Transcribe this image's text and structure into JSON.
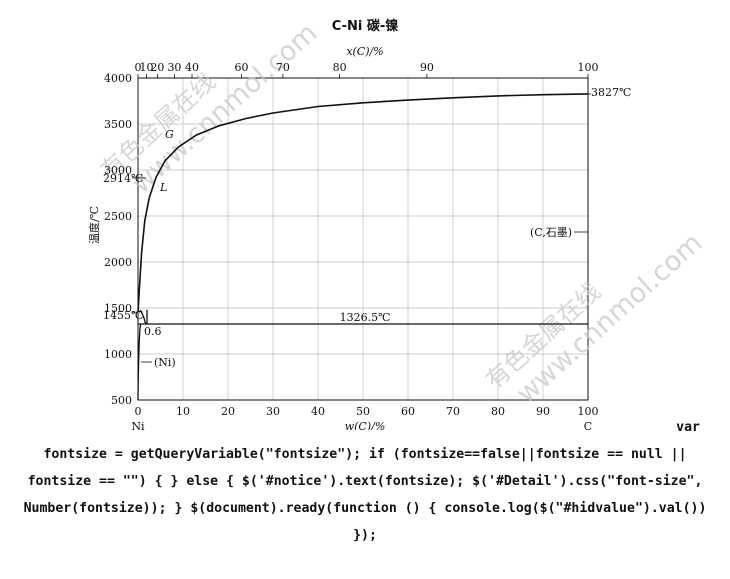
{
  "figure": {
    "title": "C-Ni 碳-镍",
    "top_axis_label": "x(C)/%",
    "bottom_axis_label": "w(C)/%",
    "y_axis_label": "温度/℃",
    "element_left": "Ni",
    "element_right": "C",
    "phase_labels": {
      "gas": "G",
      "liquid": "L",
      "nickel_solid": "(Ni)",
      "graphite": "(C,石墨)"
    },
    "temperature_labels": {
      "ni_melting": "1455℃",
      "eutectic_left": "2914℃",
      "c_melting": "3827℃",
      "eutectic": "1326.5℃"
    },
    "point_labels": {
      "eutectic_solubility": "0.6"
    },
    "watermark": "有色金属在线 www.cnnmol.com"
  },
  "chart_data": {
    "type": "line",
    "title": "C-Ni 碳-镍",
    "xlabel": "w(C)/%",
    "ylabel": "温度/℃",
    "xlim": [
      0,
      100
    ],
    "ylim": [
      500,
      4000
    ],
    "x_ticks": [
      0,
      10,
      20,
      30,
      40,
      50,
      60,
      70,
      80,
      90,
      100
    ],
    "y_ticks": [
      500,
      1000,
      1500,
      2000,
      2500,
      3000,
      3500,
      4000
    ],
    "top_ticks": [
      0,
      10,
      20,
      30,
      40,
      60,
      70,
      80,
      90,
      100
    ],
    "top_tick_positions_w": [
      0,
      1.9,
      4.3,
      8.1,
      12.0,
      23.0,
      32.2,
      44.8,
      64.2,
      100
    ],
    "grid": true,
    "series": [
      {
        "x": [
          0,
          0.3,
          0.8,
          1.5,
          2.5,
          4,
          6,
          9,
          13,
          18,
          24,
          30,
          40,
          50,
          60,
          70,
          80,
          90,
          100
        ],
        "y": [
          1455,
          1700,
          2100,
          2450,
          2700,
          2920,
          3100,
          3250,
          3380,
          3480,
          3560,
          3620,
          3690,
          3730,
          3760,
          3785,
          3805,
          3818,
          3827
        ]
      },
      {
        "x": [
          0.2,
          0.6,
          1.0,
          1.4,
          1.6,
          2.0
        ],
        "y": [
          1455,
          1470,
          1430,
          1380,
          1340,
          1326.5
        ]
      },
      {
        "x": [
          0,
          2,
          100
        ],
        "y": [
          1326.5,
          1326.5,
          1326.5
        ]
      },
      {
        "x": [
          0,
          0.05,
          0.15,
          0.3,
          0.45,
          0.6
        ],
        "y": [
          500,
          700,
          950,
          1150,
          1280,
          1326.5
        ]
      },
      {
        "x": [
          2,
          2
        ],
        "y": [
          1326.5,
          1480
        ]
      }
    ]
  },
  "code_text": {
    "first": "var",
    "rest": "fontsize = getQueryVariable(\"fontsize\"); if (fontsize==false||fontsize == null || fontsize == \"\") { } else { $('#notice').text(fontsize); $('#Detail').css(\"font-size\", Number(fontsize)); } $(document).ready(function () { console.log($(\"#hidvalue\").val()) });"
  }
}
